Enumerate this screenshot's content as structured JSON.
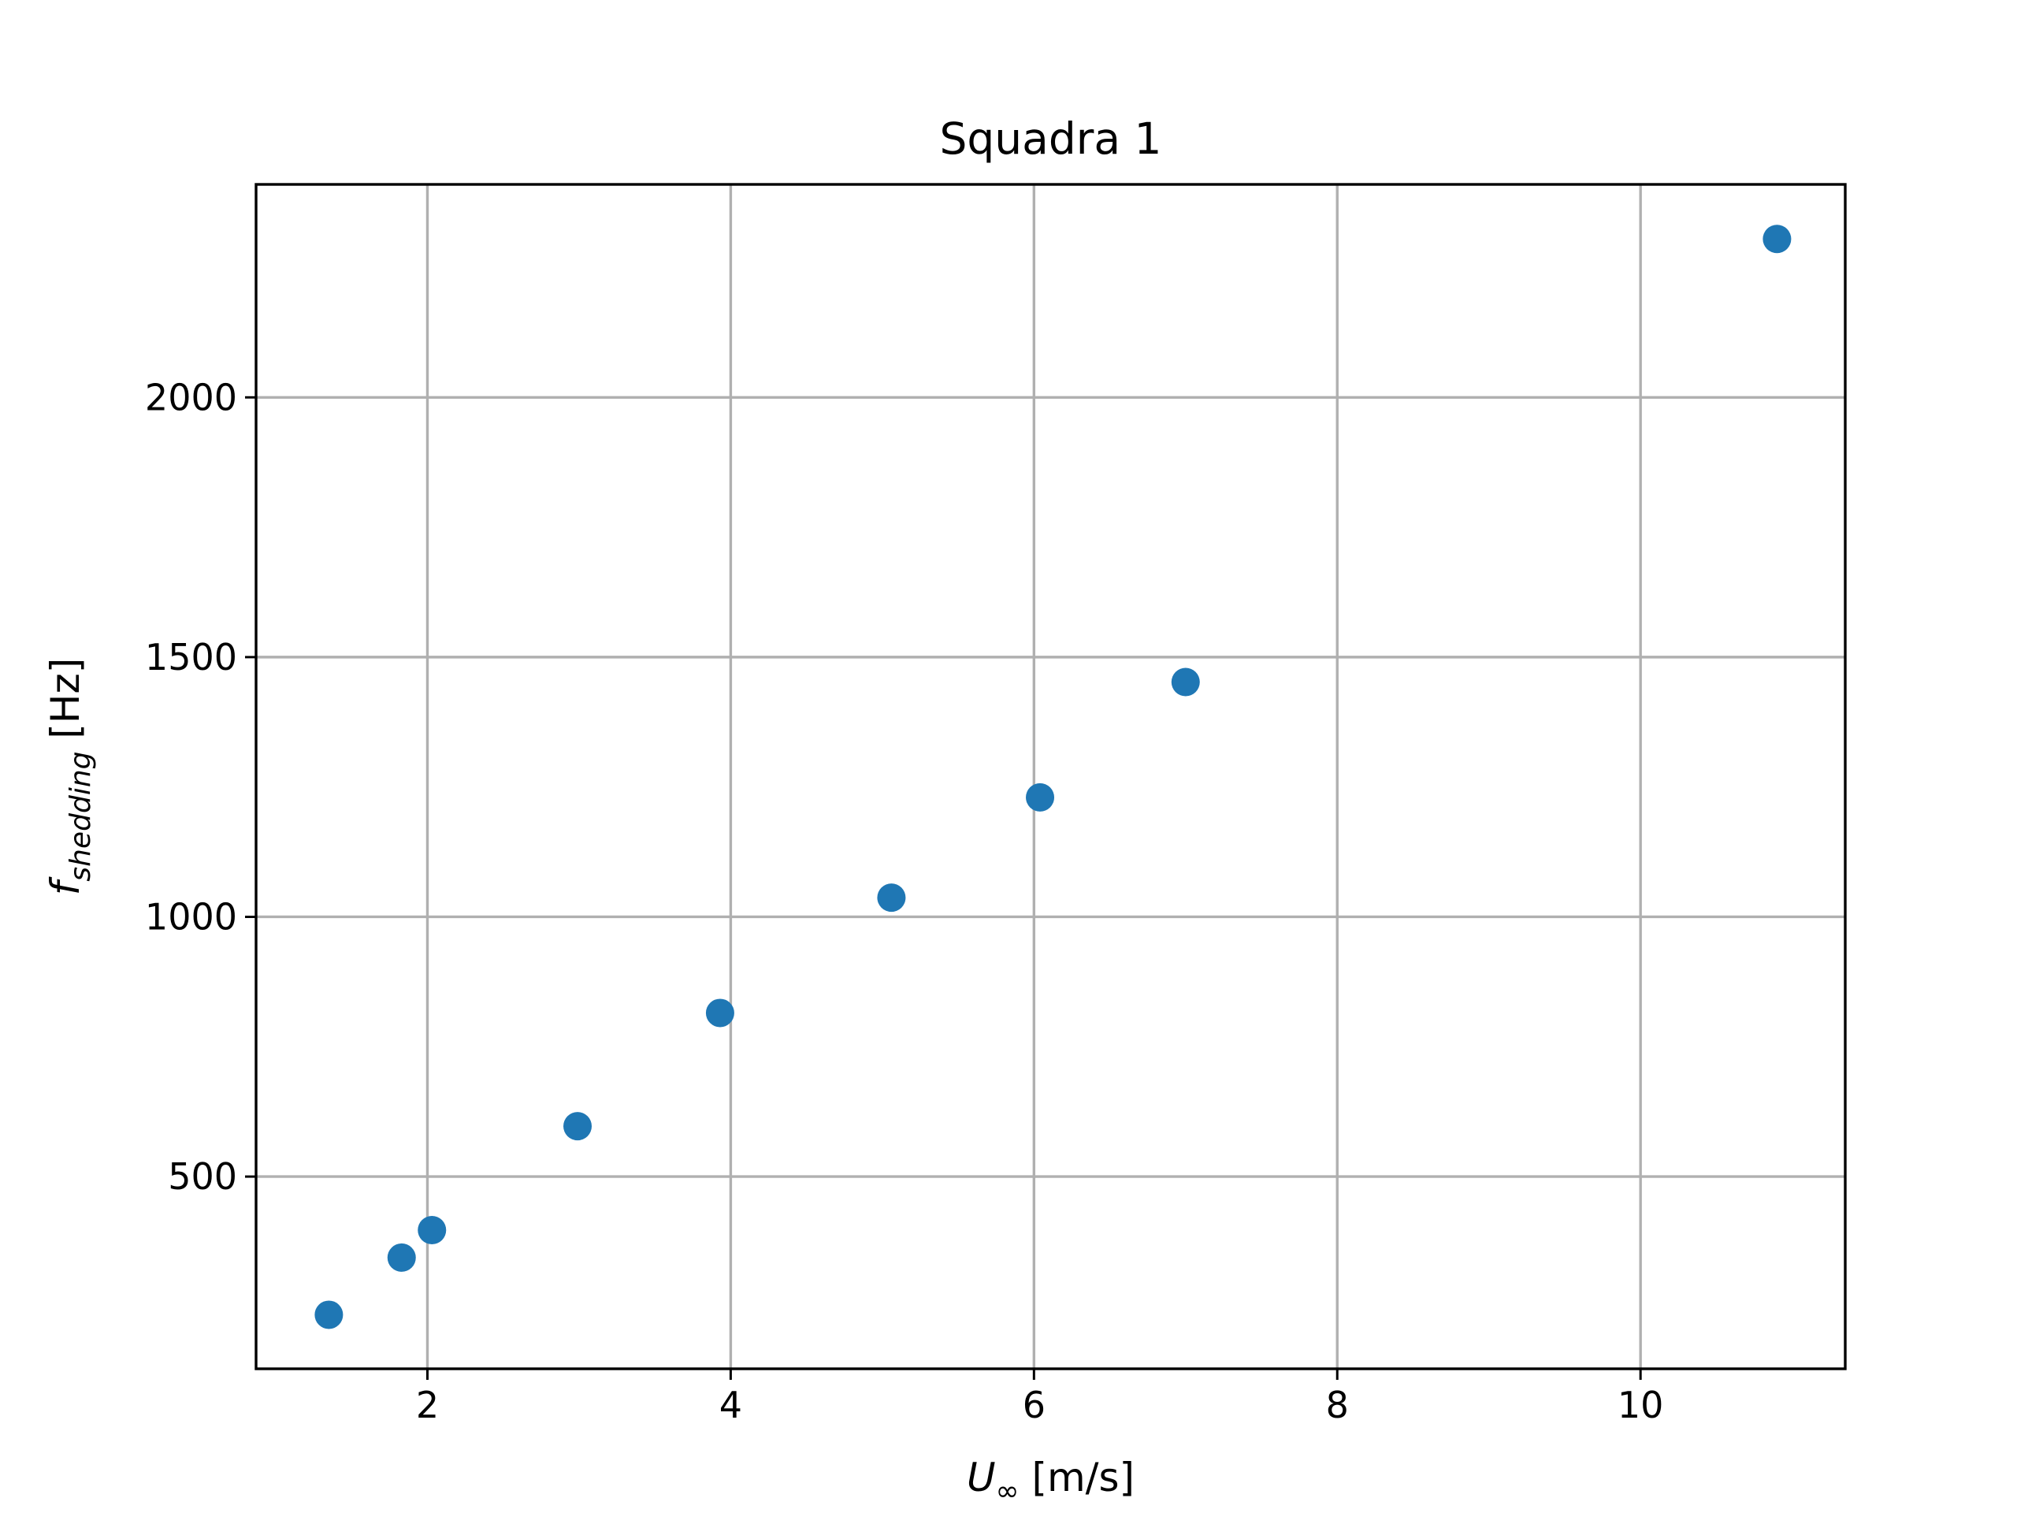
{
  "chart_data": {
    "type": "scatter",
    "title": "Squadra 1",
    "xlabel": {
      "symbol": "U",
      "subscript": "∞",
      "unit": " [m/s]"
    },
    "ylabel": {
      "symbol": "f",
      "subscript": "shedding",
      "unit": " [Hz]"
    },
    "xlim": [
      0.87,
      11.35
    ],
    "ylim": [
      130,
      2410
    ],
    "xticks": [
      2,
      4,
      6,
      8,
      10
    ],
    "yticks": [
      500,
      1000,
      1500,
      2000
    ],
    "xtick_labels": [
      "2",
      "4",
      "6",
      "8",
      "10"
    ],
    "ytick_labels": [
      "500",
      "1000",
      "1500",
      "2000"
    ],
    "grid": true,
    "marker_color": "#1f77b4",
    "series": [
      {
        "x": [
          1.35,
          1.83,
          2.03,
          2.99,
          3.93,
          5.06,
          6.04,
          7.0,
          10.9
        ],
        "y": [
          234,
          344,
          397,
          597,
          815,
          1037,
          1230,
          1452,
          2305
        ]
      }
    ]
  }
}
